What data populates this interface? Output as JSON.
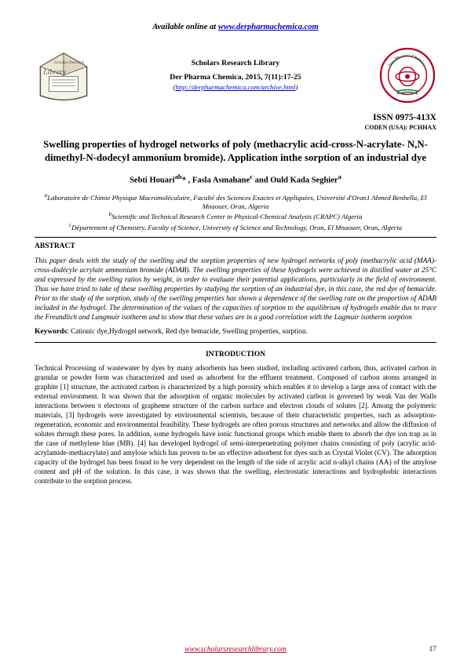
{
  "header": {
    "available_prefix": "Available online at ",
    "available_link": "www.derpharmachemica.com",
    "library_label": "Scholars Research Library",
    "journal_citation": "Der Pharma Chemica, 2015, 7(11):17-25",
    "archive_open": "(",
    "archive_link": "http://derpharmachemica.com/archive.html",
    "archive_close": ")",
    "issn": "ISSN 0975-413X",
    "coden": "CODEN (USA): PCHHAX",
    "logo_left": {
      "top_text": "Scholars Research",
      "bottom_text": "Library",
      "fill": "#f5f2ea",
      "stroke": "#5b5440"
    },
    "logo_right": {
      "ring_text_top": "Der Pharma Chemica",
      "fill": "#ffffff",
      "stroke": "#b00020",
      "green": "#0a7a3f"
    }
  },
  "paper": {
    "title": "Swelling properties of hydrogel  networks of poly (methacrylic acid-cross-N-acrylate- N,N-dimethyl-N-dodecyl ammonium bromide). Application inthe sorption of an  industrial dye",
    "authors_html": "Sebti Houari<sup>ab</sup>* , Fasla Asmahane<sup>c</sup> and Ould Kada Seghier<sup>a</sup>",
    "affiliations": [
      {
        "sup": "a",
        "text": "Laboratoire de Chimie Physique Macromoléculaire, Faculté des Sciences Exactes et Appliquées, Université d'Oran1 Ahmed Benbella, El Mnaouer, Oran, Algeria"
      },
      {
        "sup": "b",
        "text": "Scientific and Technical Research Center in Physical-Chemical Analysis (CRAPC) Algeria"
      },
      {
        "sup": "c",
        "text": "Département of Chemistry, Faculty of Science, University of Science and Technology, Oran, El Mnaouer, Oran, Algeria"
      }
    ]
  },
  "abstract": {
    "heading": "ABSTRACT",
    "body": "This paper deals with the study of the swelling and the sorption properties of new hydrogel networks of poly (methacrylic acid (MAA)-cross-dodécyle acrylate ammonium bromide (ADAB). The swelling properties of these hydrogels were achieved in distilled water at 25°C and expressed by the swelling ratios by weight, in order to evaluate their potential applications, particularly in the field of environment. Thus we have tried to take of these swelling properties by studying the sorption of an industrial dye, in this case, the red dye of bemacide. Prior to the study of the sorption, study of the swelling properties has shown a dependence of the swelling rate on the proportion of ADAB included in the hydrogel. The determination of the values of the capacities of sorption to the aquilibrium of hydrogels enable dus to trace the Freundlich and Langmuir isotherm and to show that these values are in a good correlation with the Lagmuir isotherm sorption"
  },
  "keywords": {
    "label": "Keywords",
    "text": ": Cationic dye,Hydrogel network, Red dye bemacide, Swelling properties,  sorption."
  },
  "introduction": {
    "heading": "INTRODUCTION",
    "body": "Technical Processing of  wastewater by dyes by many adsorbents has been  studied, including activated carbon, thus, activated carbon in granular or powder form was characterized and used as adsorbent for the effluent treatment. Composed of carbon atoms arranged in graphite [1] structure, the activated carbon is characterized by a high porosity which enables it to develop a large area of contact with the external environment. It was shown that the adsorption of organic molecules by activated carbon is governed by weak Van der Walls interactions between π electrons of grapheme structure of the carbon surface and electron clouds of solutes [2]. Among the polymeric materials, [3] hydrogels were investigated by environmental scientists, because of their characteristic properties, such as adsorption-regeneration, economic and environmental feasibility. These hydrogels are often porous structures and networks and allow the diffusion of solutes through these pores. In addition, some hydrogels have ionic functional groups which enable them to absorb the dye ion trap as in the case of methylene blue (MB). [4] has developed hydrogel of semi-interpenetrating polymer chains consisting of poly (acrylic acid-acrylamide-methacrylate) and amylose which has proven to be an effective adsorbent for dyes such as Crystal Violet (CV). The adsorption capacity of the hydrogel has been found to be very dependent on the length of the side of acrylic acid n-alkyl chains (AA) of the amylose content and pH of the solution. In this case, it was shown that the swelling, electrostatic interactions and hydrophobic interactions contribute to the sorption process."
  },
  "footer": {
    "link_text": "www.scholarsresearchlibrary.com",
    "page": "17"
  }
}
